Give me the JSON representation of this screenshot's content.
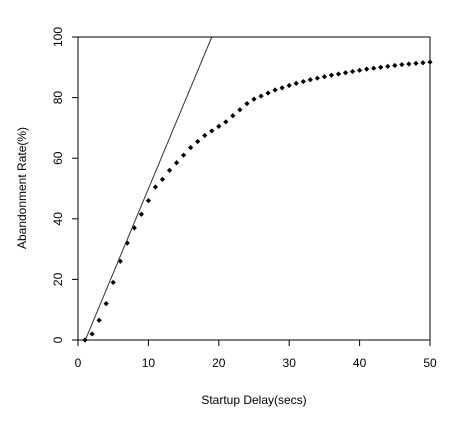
{
  "chart_data": {
    "type": "scatter",
    "title": "",
    "xlabel": "Startup Delay(secs)",
    "ylabel": "Abandonment Rate(%)",
    "xlim": [
      0,
      50
    ],
    "ylim": [
      0,
      100
    ],
    "x_ticks": [
      "0",
      "10",
      "20",
      "30",
      "40",
      "50"
    ],
    "y_ticks": [
      "0",
      "20",
      "40",
      "60",
      "80",
      "100"
    ],
    "grid": false,
    "legend": "none",
    "colors": {
      "points": "#000000",
      "line": "#333333",
      "axes": "#000000",
      "background": "#ffffff"
    },
    "series": [
      {
        "type": "scatter",
        "x": [
          1,
          2,
          3,
          4,
          5,
          6,
          7,
          8,
          9,
          10,
          11,
          12,
          13,
          14,
          15,
          16,
          17,
          18,
          19,
          20,
          21,
          22,
          23,
          24,
          25,
          26,
          27,
          28,
          29,
          30,
          31,
          32,
          33,
          34,
          35,
          36,
          37,
          38,
          39,
          40,
          41,
          42,
          43,
          44,
          45,
          46,
          47,
          48,
          49,
          50
        ],
        "values": [
          0,
          2,
          6.5,
          12,
          19,
          26,
          32,
          37,
          41.5,
          46,
          50.5,
          53,
          56,
          58.5,
          61,
          63.5,
          65.5,
          67.5,
          69,
          70.5,
          72,
          74,
          76,
          78,
          79.5,
          80.5,
          81.5,
          82.5,
          83.2,
          84,
          84.7,
          85.3,
          85.9,
          86.4,
          86.9,
          87.4,
          87.8,
          88.2,
          88.6,
          89,
          89.4,
          89.7,
          90,
          90.3,
          90.6,
          90.9,
          91.1,
          91.3,
          91.5,
          91.7
        ]
      },
      {
        "type": "line",
        "x": [
          0.5,
          19
        ],
        "values": [
          -3,
          100
        ]
      }
    ]
  }
}
